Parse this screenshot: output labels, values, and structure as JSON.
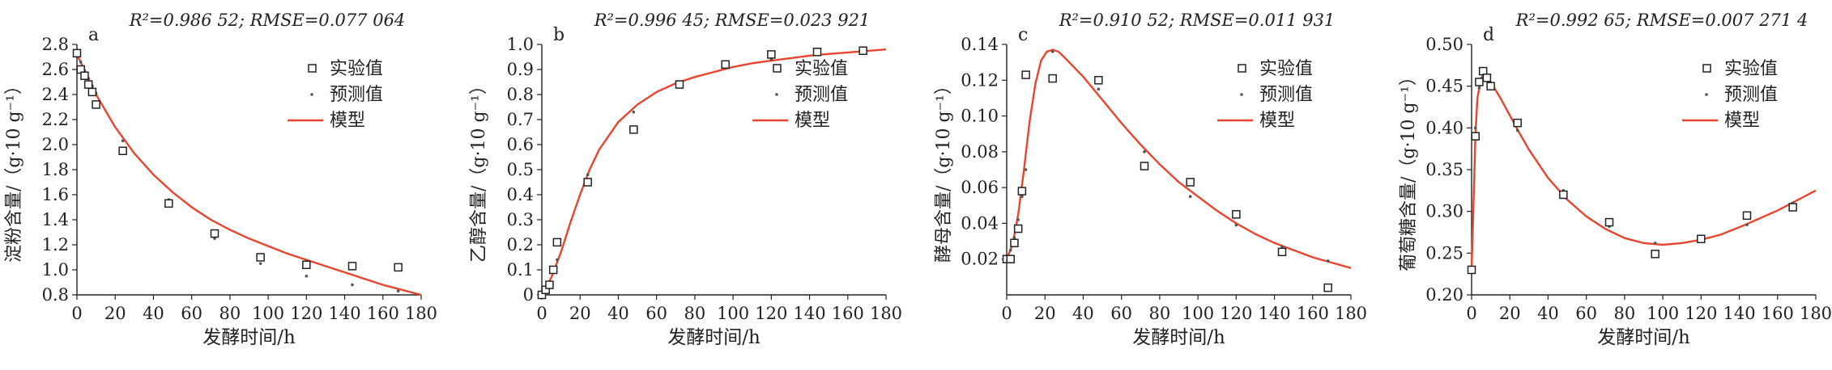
{
  "chart_data": [
    {
      "type": "scatter",
      "panel_letter": "a",
      "title": "R²=0.986 52; RMSE=0.077 064",
      "ylabel": "淀粉含量/（g·10 g⁻¹）",
      "xlabel": "发酵时间/h",
      "xlim": [
        0,
        180
      ],
      "ylim": [
        0.8,
        2.8
      ],
      "xticks": [
        "0",
        "20",
        "40",
        "60",
        "80",
        "100",
        "120",
        "140",
        "160",
        "180"
      ],
      "yticks": [
        "0.8",
        "1.0",
        "1.2",
        "1.4",
        "1.6",
        "1.8",
        "2.0",
        "2.2",
        "2.4",
        "2.6",
        "2.8"
      ],
      "legend": [
        "实验值",
        "预测值",
        "模型"
      ],
      "legend_position": "top-right",
      "series": [
        {
          "name": "实验值",
          "kind": "square",
          "x": [
            0,
            2,
            4,
            6,
            8,
            10,
            24,
            48,
            72,
            96,
            120,
            144,
            168
          ],
          "y": [
            2.73,
            2.6,
            2.55,
            2.48,
            2.42,
            2.32,
            1.95,
            1.53,
            1.29,
            1.1,
            1.04,
            1.03,
            1.02
          ]
        },
        {
          "name": "预测值",
          "kind": "dot",
          "x": [
            0,
            2,
            4,
            6,
            8,
            10,
            24,
            48,
            72,
            96,
            120,
            144,
            168
          ],
          "y": [
            2.72,
            2.66,
            2.59,
            2.53,
            2.47,
            2.41,
            2.03,
            1.56,
            1.25,
            1.05,
            0.95,
            0.88,
            0.83
          ]
        },
        {
          "name": "模型",
          "kind": "line",
          "x": [
            0,
            10,
            20,
            30,
            40,
            50,
            60,
            70,
            80,
            90,
            100,
            110,
            120,
            130,
            140,
            150,
            160,
            170,
            180
          ],
          "y": [
            2.72,
            2.4,
            2.14,
            1.93,
            1.76,
            1.62,
            1.5,
            1.4,
            1.32,
            1.25,
            1.19,
            1.13,
            1.08,
            1.03,
            0.98,
            0.93,
            0.88,
            0.84,
            0.8
          ]
        }
      ]
    },
    {
      "type": "scatter",
      "panel_letter": "b",
      "title": "R²=0.996 45; RMSE=0.023 921",
      "ylabel": "乙醇含量/（g·10 g⁻¹）",
      "xlabel": "发酵时间/h",
      "xlim": [
        0,
        180
      ],
      "ylim": [
        0,
        1.0
      ],
      "xticks": [
        "0",
        "20",
        "40",
        "60",
        "80",
        "100",
        "120",
        "140",
        "160",
        "180"
      ],
      "yticks": [
        "0",
        "0.1",
        "0.2",
        "0.3",
        "0.4",
        "0.5",
        "0.6",
        "0.7",
        "0.8",
        "0.9",
        "1.0"
      ],
      "legend": [
        "实验值",
        "预测值",
        "模型"
      ],
      "legend_position": "right",
      "series": [
        {
          "name": "实验值",
          "kind": "square",
          "x": [
            0,
            2,
            4,
            6,
            8,
            24,
            48,
            72,
            96,
            120,
            144,
            168
          ],
          "y": [
            0.0,
            0.02,
            0.04,
            0.1,
            0.21,
            0.45,
            0.66,
            0.84,
            0.92,
            0.96,
            0.97,
            0.975
          ]
        },
        {
          "name": "预测值",
          "kind": "dot",
          "x": [
            0,
            2,
            4,
            6,
            8,
            24,
            48,
            72,
            96,
            120,
            144,
            168
          ],
          "y": [
            0.0,
            0.02,
            0.05,
            0.09,
            0.14,
            0.48,
            0.73,
            0.85,
            0.91,
            0.94,
            0.96,
            0.97
          ]
        },
        {
          "name": "模型",
          "kind": "line",
          "x": [
            0,
            5,
            10,
            15,
            20,
            25,
            30,
            40,
            50,
            60,
            70,
            80,
            90,
            100,
            110,
            120,
            130,
            140,
            150,
            160,
            170,
            180
          ],
          "y": [
            0.0,
            0.07,
            0.17,
            0.29,
            0.4,
            0.5,
            0.58,
            0.69,
            0.76,
            0.81,
            0.845,
            0.87,
            0.89,
            0.91,
            0.925,
            0.935,
            0.945,
            0.955,
            0.962,
            0.968,
            0.974,
            0.98
          ]
        }
      ]
    },
    {
      "type": "scatter",
      "panel_letter": "c",
      "title": "R²=0.910 52; RMSE=0.011 931",
      "ylabel": "酵母含量/（g·10 g⁻¹）",
      "xlabel": "发酵时间/h",
      "xlim": [
        0,
        180
      ],
      "ylim": [
        0,
        0.14
      ],
      "xticks": [
        "0",
        "20",
        "40",
        "60",
        "80",
        "100",
        "120",
        "140",
        "160",
        "180"
      ],
      "yticks": [
        "0.02",
        "0.04",
        "0.06",
        "0.08",
        "0.10",
        "0.12",
        "0.14"
      ],
      "legend": [
        "实验值",
        "预测值",
        "模型"
      ],
      "legend_position": "top-right",
      "series": [
        {
          "name": "实验值",
          "kind": "square",
          "x": [
            0,
            2,
            4,
            6,
            8,
            10,
            24,
            48,
            72,
            96,
            120,
            144,
            168
          ],
          "y": [
            0.02,
            0.02,
            0.029,
            0.037,
            0.058,
            0.123,
            0.121,
            0.12,
            0.072,
            0.063,
            0.045,
            0.024,
            0.004
          ]
        },
        {
          "name": "预测值",
          "kind": "dot",
          "x": [
            0,
            2,
            4,
            6,
            8,
            10,
            24,
            48,
            72,
            96,
            120,
            144,
            168
          ],
          "y": [
            0.02,
            0.025,
            0.032,
            0.042,
            0.055,
            0.07,
            0.136,
            0.115,
            0.08,
            0.055,
            0.039,
            0.027,
            0.019
          ]
        },
        {
          "name": "模型",
          "kind": "line",
          "x": [
            0,
            3,
            6,
            9,
            12,
            15,
            18,
            21,
            24,
            27,
            30,
            40,
            50,
            60,
            70,
            80,
            90,
            100,
            110,
            120,
            130,
            140,
            150,
            160,
            170,
            180
          ],
          "y": [
            0.02,
            0.028,
            0.045,
            0.07,
            0.097,
            0.118,
            0.131,
            0.136,
            0.137,
            0.136,
            0.133,
            0.122,
            0.109,
            0.096,
            0.084,
            0.073,
            0.063,
            0.055,
            0.047,
            0.04,
            0.034,
            0.029,
            0.025,
            0.021,
            0.018,
            0.015
          ]
        }
      ]
    },
    {
      "type": "scatter",
      "panel_letter": "d",
      "title": "R²=0.992 65; RMSE=0.007 271 4",
      "ylabel": "葡萄糖含量/（g·10 g⁻¹）",
      "xlabel": "发酵时间/h",
      "xlim": [
        0,
        180
      ],
      "ylim": [
        0.2,
        0.5
      ],
      "xticks": [
        "0",
        "20",
        "40",
        "60",
        "80",
        "100",
        "120",
        "140",
        "160",
        "180"
      ],
      "yticks": [
        "0.20",
        "0.25",
        "0.30",
        "0.35",
        "0.40",
        "0.45",
        "0.50"
      ],
      "legend": [
        "实验值",
        "预测值",
        "模型"
      ],
      "legend_position": "top-right",
      "series": [
        {
          "name": "实验值",
          "kind": "square",
          "x": [
            0,
            2,
            4,
            6,
            8,
            10,
            24,
            48,
            72,
            96,
            120,
            144,
            168
          ],
          "y": [
            0.23,
            0.39,
            0.455,
            0.468,
            0.46,
            0.45,
            0.406,
            0.32,
            0.287,
            0.249,
            0.267,
            0.295,
            0.305
          ]
        },
        {
          "name": "预测值",
          "kind": "dot",
          "x": [
            0,
            2,
            4,
            6,
            8,
            10,
            24,
            48,
            72,
            96,
            120,
            144,
            168
          ],
          "y": [
            0.23,
            0.4,
            0.448,
            0.462,
            0.458,
            0.45,
            0.397,
            0.325,
            0.282,
            0.262,
            0.265,
            0.284,
            0.31
          ]
        },
        {
          "name": "模型",
          "kind": "line",
          "x": [
            0,
            1,
            2,
            3,
            5,
            7,
            10,
            15,
            20,
            25,
            30,
            40,
            50,
            60,
            70,
            80,
            90,
            100,
            110,
            120,
            130,
            140,
            150,
            160,
            170,
            180
          ],
          "y": [
            0.23,
            0.31,
            0.39,
            0.435,
            0.46,
            0.463,
            0.455,
            0.436,
            0.415,
            0.394,
            0.374,
            0.34,
            0.314,
            0.294,
            0.279,
            0.268,
            0.262,
            0.26,
            0.262,
            0.266,
            0.272,
            0.281,
            0.291,
            0.301,
            0.313,
            0.325
          ]
        }
      ]
    }
  ]
}
